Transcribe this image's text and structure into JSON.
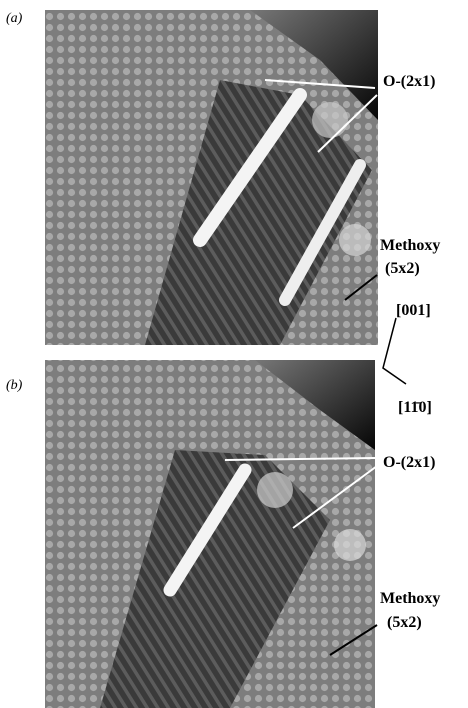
{
  "panels": [
    {
      "label": "(a)",
      "annotations": [
        "O-(2x1)",
        "Methoxy",
        "(5x2)"
      ]
    },
    {
      "label": "(b)",
      "annotations": [
        "O-(2x1)",
        "Methoxy",
        "(5x2)"
      ]
    }
  ],
  "directions": [
    "[001]",
    "[11̄0]"
  ]
}
